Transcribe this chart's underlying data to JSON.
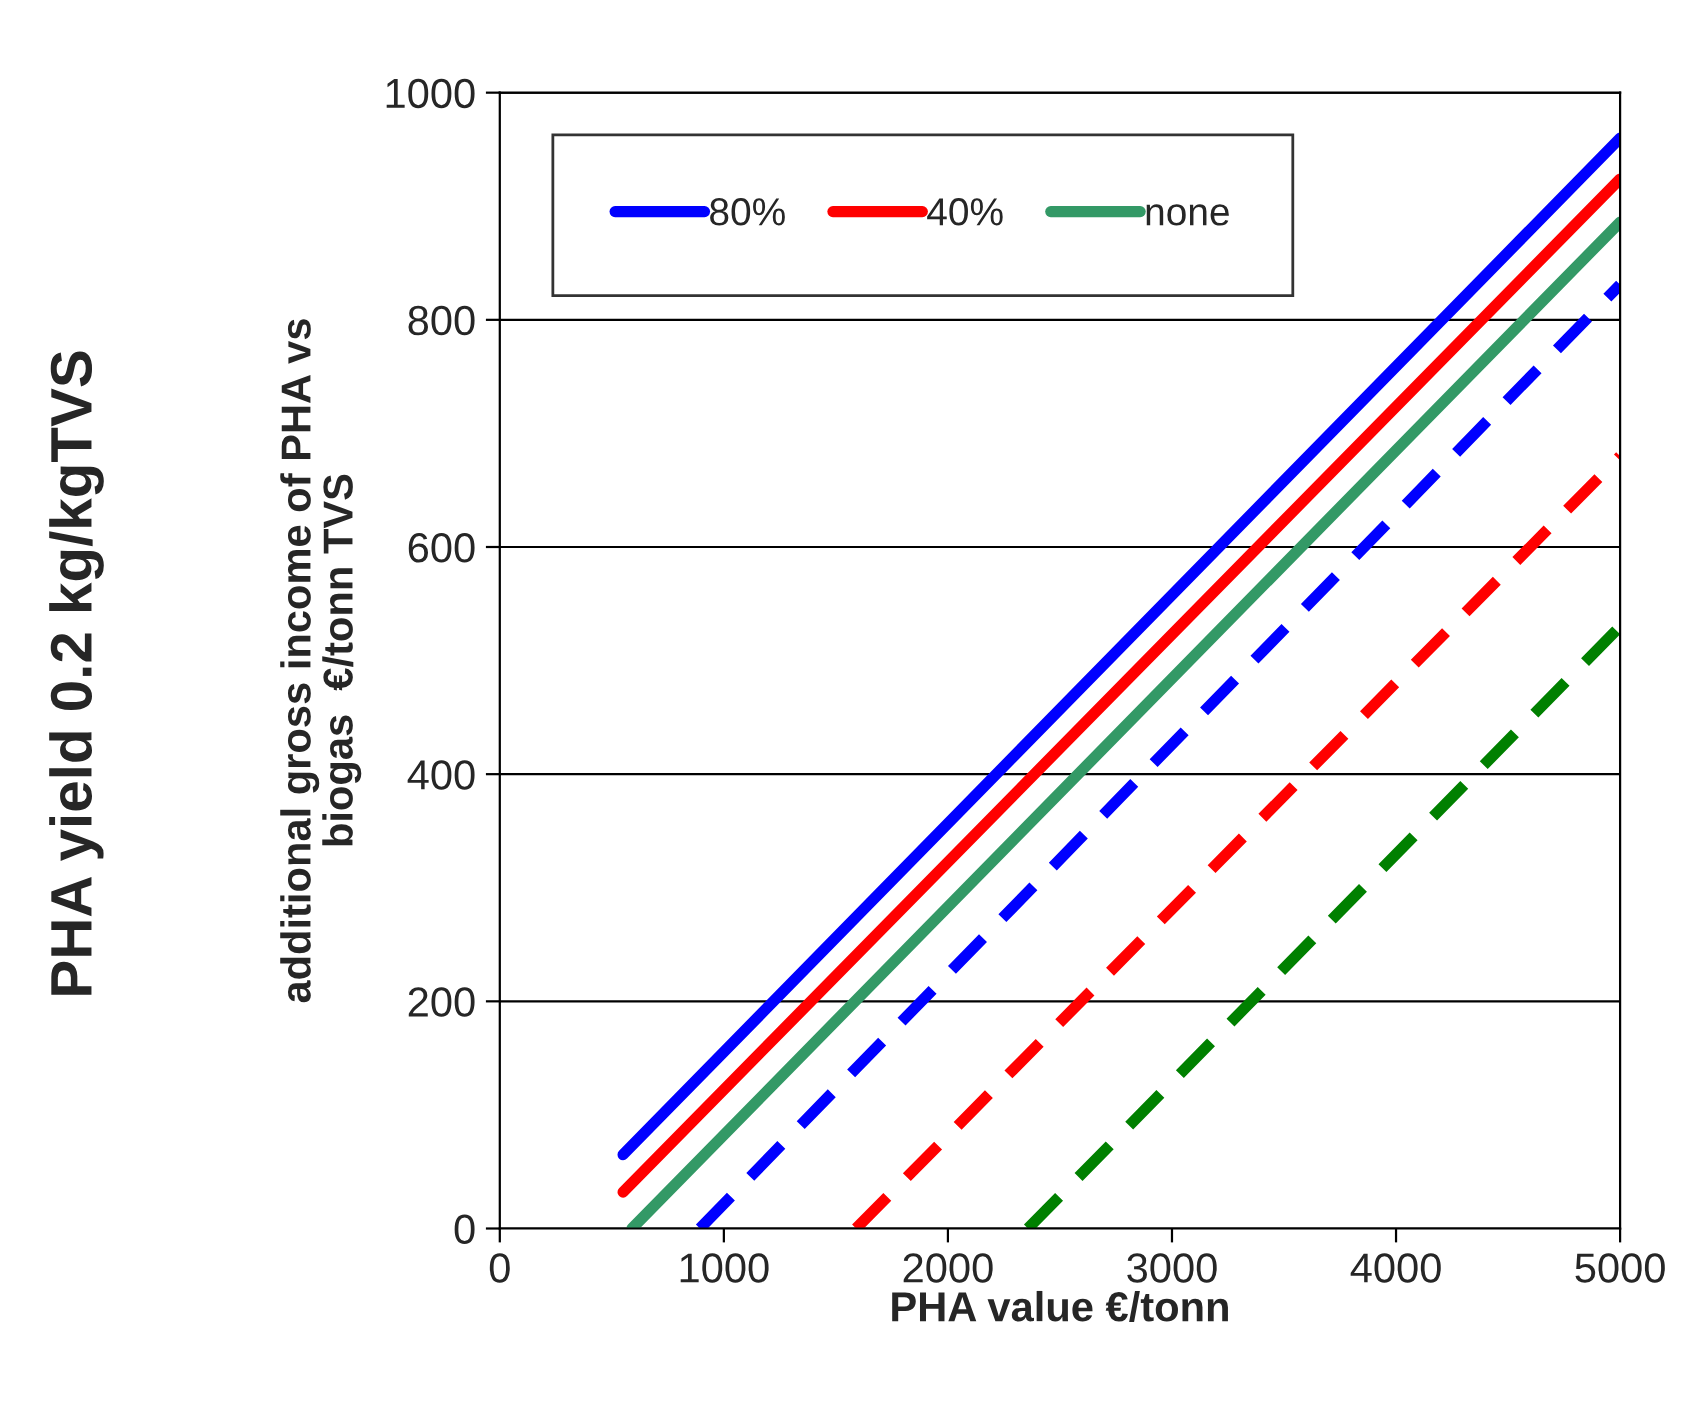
{
  "chart_data": {
    "type": "line",
    "xlabel": "PHA value €/tonn",
    "ylabel": "additional gross income of PHA vs\nbiogas  €/tonn TVS",
    "annotations": [
      "PHA yield 0.2 kg/kgTVS"
    ],
    "xlim": [
      0,
      5000
    ],
    "xticks": [
      0,
      1000,
      2000,
      3000,
      4000,
      5000
    ],
    "ylim": [
      0,
      1000
    ],
    "yticks": [
      0,
      200,
      400,
      600,
      800,
      1000
    ],
    "grid": "y",
    "legend": "top left",
    "line_style": "solid",
    "marker": "none",
    "series": [
      {
        "name": "80%",
        "color": "#0000ff",
        "x": [
          550,
          5000
        ],
        "values": [
          65,
          960
        ]
      },
      {
        "name": "40%",
        "color": "#ff0000",
        "x": [
          550,
          5000
        ],
        "values": [
          32,
          924
        ]
      },
      {
        "name": "none",
        "color": "#339966",
        "x": [
          590,
          5000
        ],
        "values": [
          0,
          886
        ]
      },
      {
        "color": "#0000ff",
        "line_style": "dashed",
        "x": [
          893,
          5000
        ],
        "values": [
          0,
          831
        ]
      },
      {
        "color": "#ff0000",
        "line_style": "dashed",
        "x": [
          1590,
          5000
        ],
        "values": [
          0,
          680
        ]
      },
      {
        "color": "#008000",
        "line_style": "dashed",
        "x": [
          2357,
          5000
        ],
        "values": [
          0,
          530
        ]
      }
    ]
  }
}
